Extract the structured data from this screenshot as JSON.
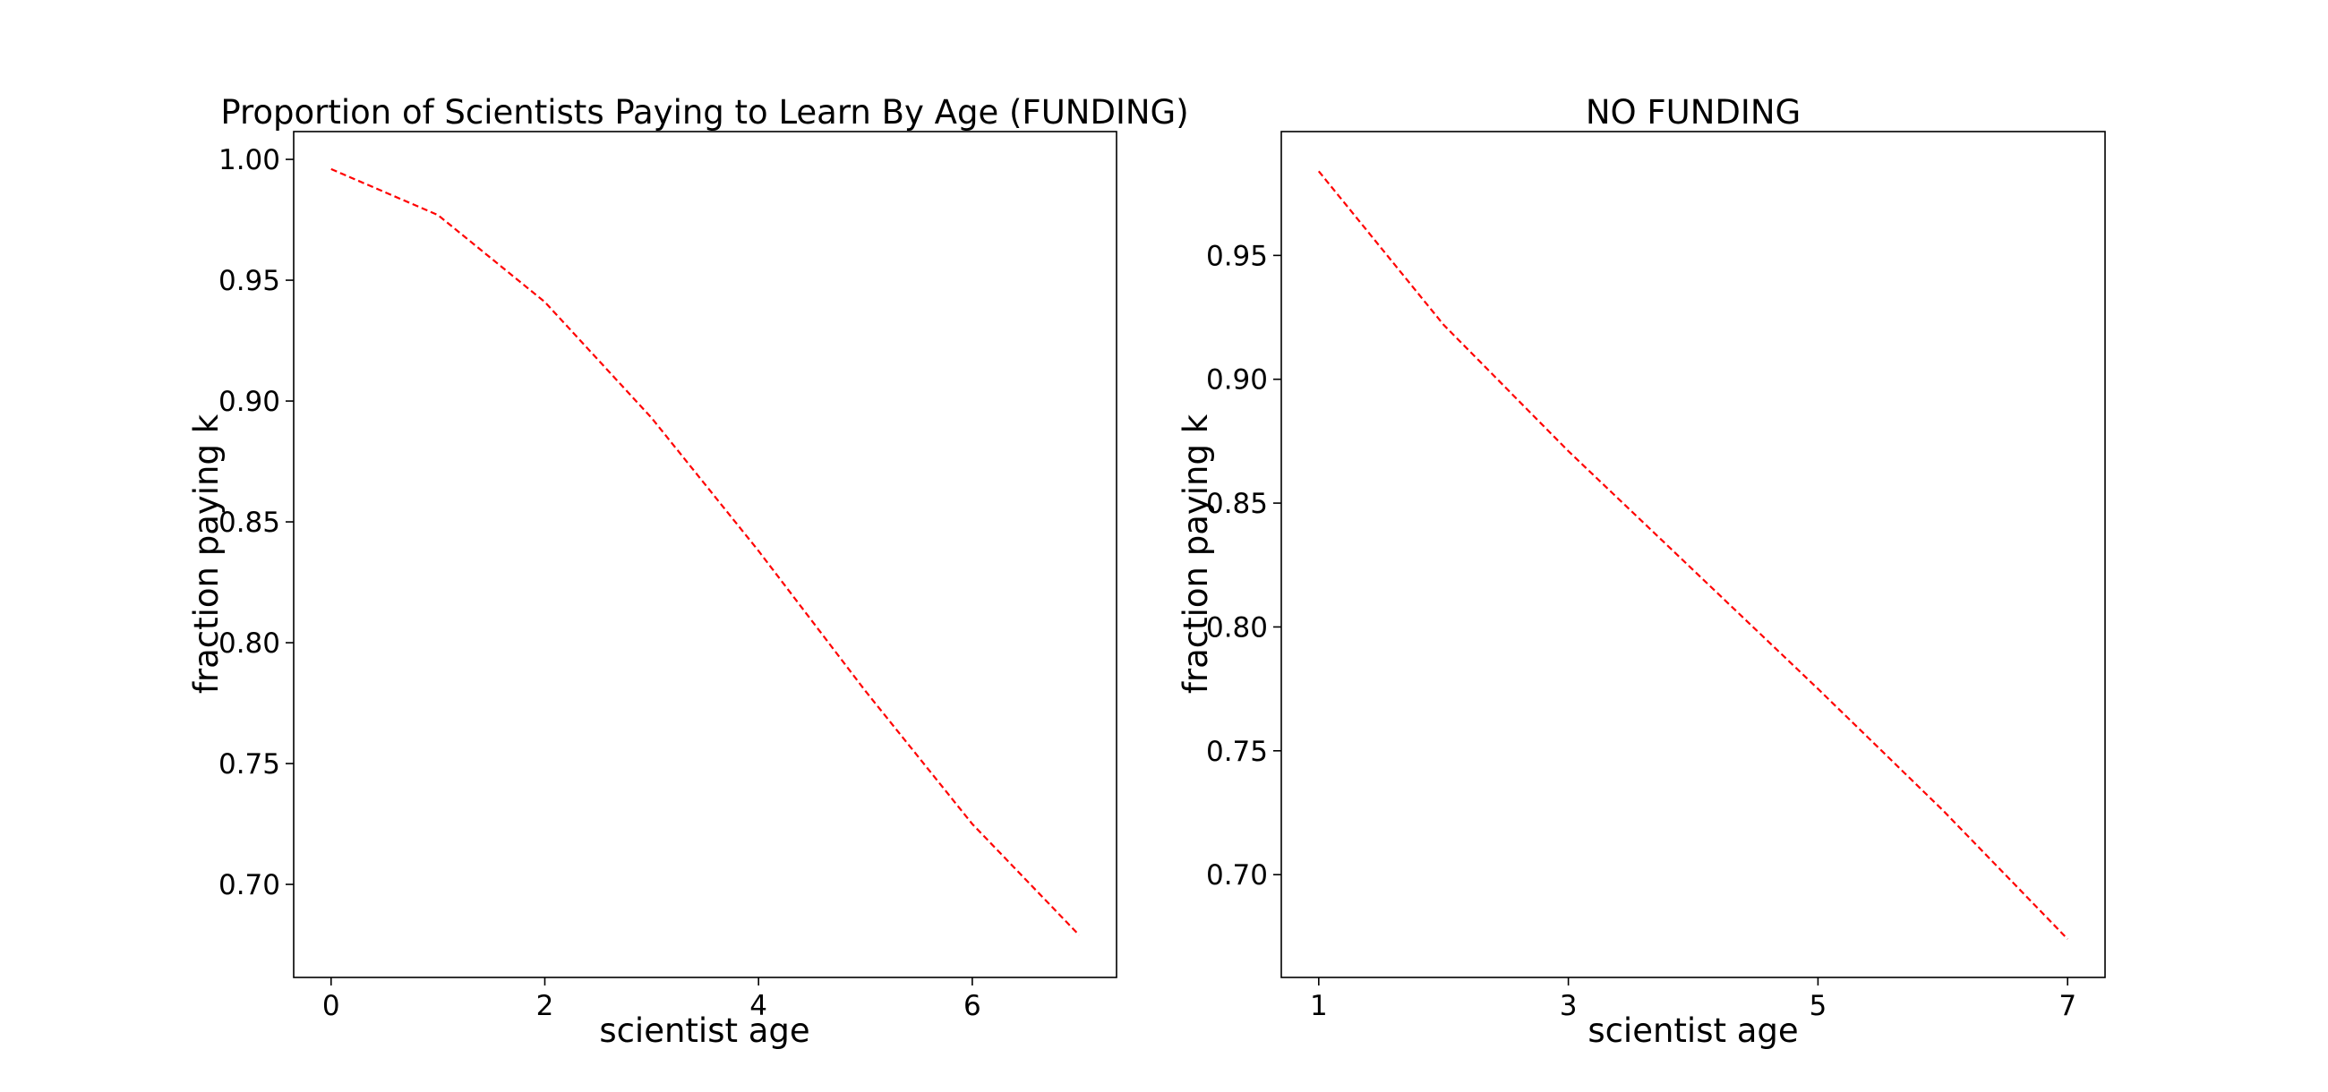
{
  "chart_data": [
    {
      "type": "line",
      "title": "Proportion of Scientists Paying to Learn By Age (FUNDING)",
      "xlabel": "scientist age",
      "ylabel": "fraction paying k",
      "xlim": [
        -0.35,
        7.35
      ],
      "ylim": [
        0.6615,
        1.0115
      ],
      "xticks": [
        0,
        2,
        4,
        6
      ],
      "xtick_labels": [
        "0",
        "2",
        "4",
        "6"
      ],
      "yticks": [
        0.7,
        0.75,
        0.8,
        0.85,
        0.9,
        0.95,
        1.0
      ],
      "ytick_labels": [
        "0.70",
        "0.75",
        "0.80",
        "0.85",
        "0.90",
        "0.95",
        "1.00"
      ],
      "grid": false,
      "series": [
        {
          "color": "#ff0000",
          "line_style": "dashed",
          "x": [
            0,
            1,
            2,
            3,
            4,
            5,
            6,
            7
          ],
          "y": [
            0.996,
            0.977,
            0.941,
            0.893,
            0.838,
            0.78,
            0.725,
            0.679
          ]
        }
      ]
    },
    {
      "type": "line",
      "title": "NO FUNDING",
      "xlabel": "scientist age",
      "ylabel": "fraction paying k",
      "xlim": [
        0.7,
        7.3
      ],
      "ylim": [
        0.6585,
        1.0
      ],
      "xticks": [
        1,
        3,
        5,
        7
      ],
      "xtick_labels": [
        "1",
        "3",
        "5",
        "7"
      ],
      "yticks": [
        0.7,
        0.75,
        0.8,
        0.85,
        0.9,
        0.95
      ],
      "ytick_labels": [
        "0.70",
        "0.75",
        "0.80",
        "0.85",
        "0.90",
        "0.95"
      ],
      "grid": false,
      "series": [
        {
          "color": "#ff0000",
          "line_style": "dashed",
          "x": [
            1,
            2,
            3,
            4,
            5,
            6,
            7
          ],
          "y": [
            0.984,
            0.922,
            0.871,
            0.823,
            0.775,
            0.726,
            0.674
          ]
        }
      ]
    }
  ]
}
